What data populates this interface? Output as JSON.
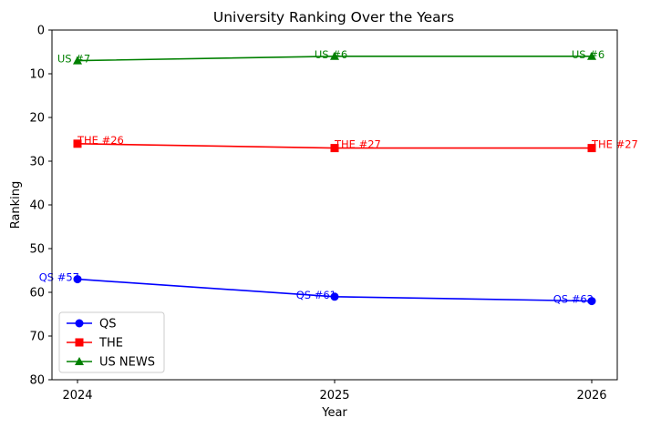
{
  "chart_data": {
    "type": "line",
    "title": "University Ranking Over the Years",
    "xlabel": "Year",
    "ylabel": "Ranking",
    "x": [
      2024,
      2025,
      2026
    ],
    "x_tick_labels": [
      "2024",
      "2025",
      "2026"
    ],
    "ylim": [
      0,
      80
    ],
    "y_inverted": true,
    "y_ticks": [
      0,
      10,
      20,
      30,
      40,
      50,
      60,
      70,
      80
    ],
    "y_tick_labels": [
      "0",
      "10",
      "20",
      "30",
      "40",
      "50",
      "60",
      "70",
      "80"
    ],
    "grid": false,
    "legend_position": "lower-left",
    "series": [
      {
        "name": "QS",
        "color": "#0000ff",
        "marker": "circle",
        "values": [
          57,
          61,
          62
        ],
        "labels": [
          "QS #57",
          "QS #61",
          "QS #62"
        ]
      },
      {
        "name": "THE",
        "color": "#ff0000",
        "marker": "square",
        "values": [
          26,
          27,
          27
        ],
        "labels": [
          "THE #26",
          "THE #27",
          "THE #27"
        ]
      },
      {
        "name": "US NEWS",
        "color": "#008000",
        "marker": "triangle",
        "values": [
          7,
          6,
          6
        ],
        "labels": [
          "US #7",
          "US #6",
          "US #6"
        ]
      }
    ]
  }
}
